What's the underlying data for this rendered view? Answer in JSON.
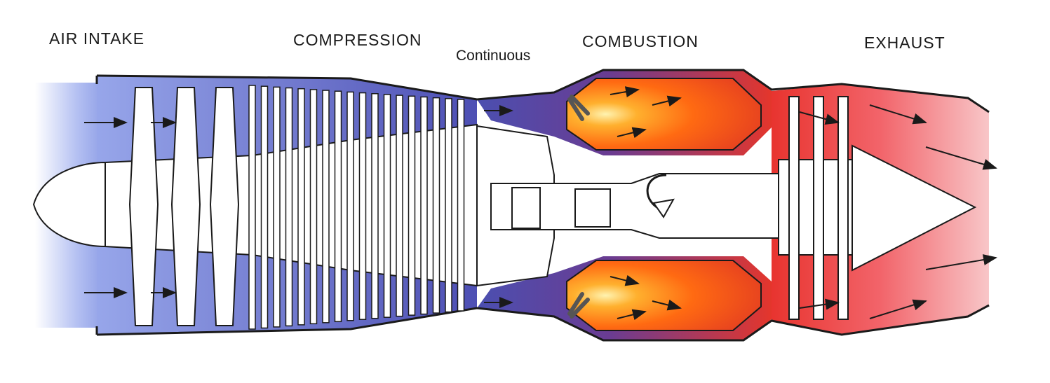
{
  "labels": {
    "air_intake": "AIR INTAKE",
    "compression": "COMPRESSION",
    "continuous": "Continuous",
    "combustion": "COMBUSTION",
    "exhaust": "EXHAUST"
  },
  "colors": {
    "intake_blue": "#8e9ee6",
    "cold_air": "#a8b4ee",
    "compressor_purple": "#5a5fbf",
    "combustion_purple": "#5b3f98",
    "flame_orange": "#ff6a00",
    "flame_red": "#e83a2a",
    "exhaust_pink": "#f25a62",
    "outline": "#1a1a1a"
  },
  "icons": [
    "flow-arrow-icon",
    "rotation-arrow-icon",
    "igniter-icon"
  ]
}
